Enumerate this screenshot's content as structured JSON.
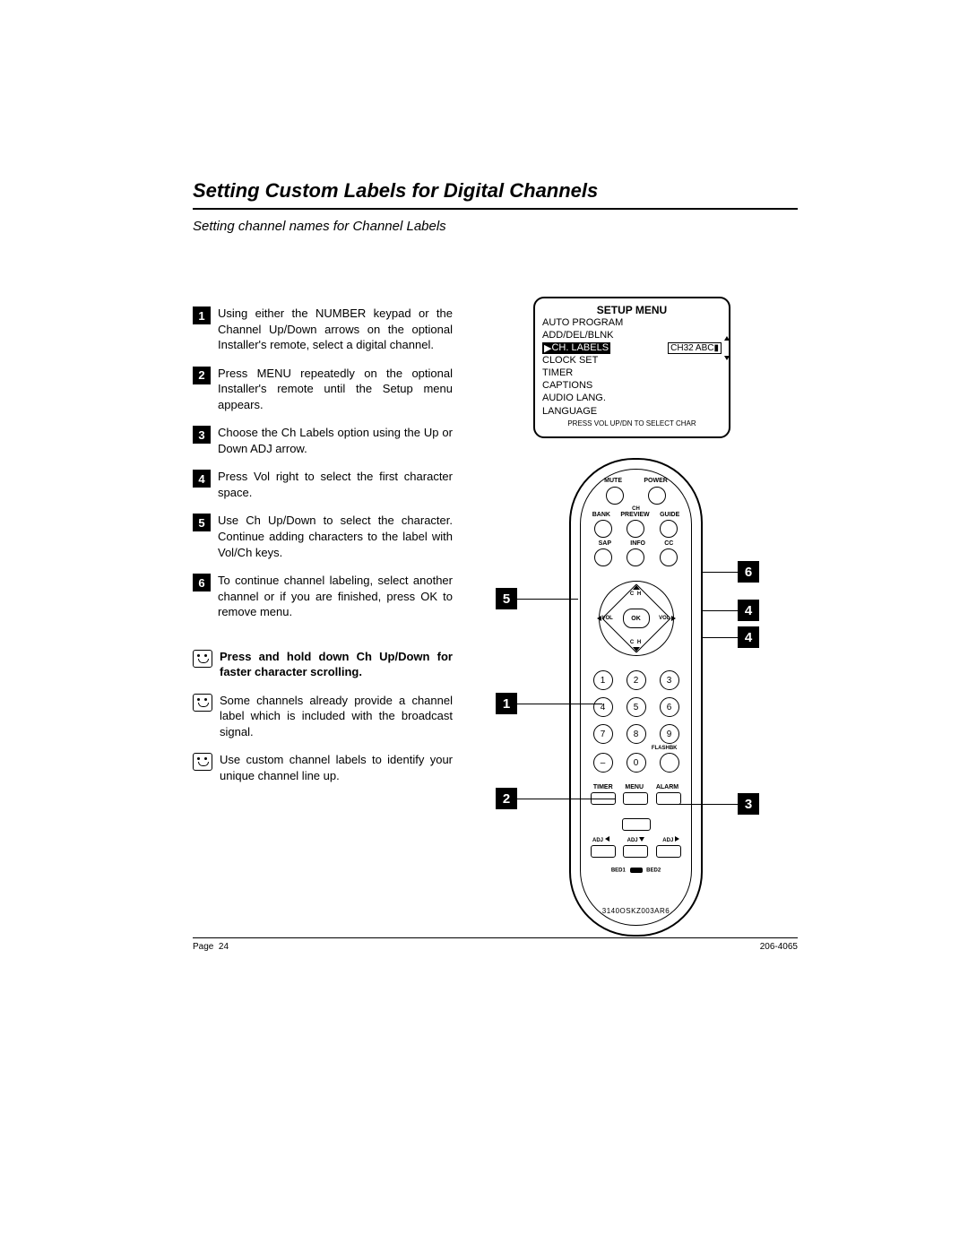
{
  "title": "Setting Custom Labels for Digital Channels",
  "subtitle": "Setting channel names for Channel Labels",
  "steps": [
    {
      "n": "1",
      "text": "Using either the NUMBER keypad or the Channel Up/Down arrows on the optional Installer's remote, select a digital channel."
    },
    {
      "n": "2",
      "text": "Press MENU repeatedly on the optional Installer's remote until the Setup menu appears."
    },
    {
      "n": "3",
      "text": "Choose the Ch  Labels option  using the Up or Down ADJ arrow."
    },
    {
      "n": "4",
      "text": "Press Vol right to select the first character space."
    },
    {
      "n": "5",
      "text": "Use Ch Up/Down to select the char­acter. Continue adding characters to the label with Vol/Ch keys."
    },
    {
      "n": "6",
      "text": "To continue channel labeling, select another channel or if you are fin­ished, press OK to remove menu."
    }
  ],
  "tips": [
    {
      "text": "Press and hold down Ch Up/Down for faster character scrolling.",
      "bold": true
    },
    {
      "text": "Some channels already provide a channel label  which is  included with the broadcast signal.",
      "bold": false
    },
    {
      "text": "Use custom channel labels to iden­tify your unique channel line up.",
      "bold": false
    }
  ],
  "setup": {
    "title": "SETUP MENU",
    "items": [
      "AUTO PROGRAM",
      "ADD/DEL/BLNK"
    ],
    "selected_label": "CH. LABELS",
    "selected_value": "CH32 ABC",
    "items_after": [
      "CLOCK SET",
      "TIMER",
      "CAPTIONS",
      "AUDIO LANG.",
      "LANGUAGE"
    ],
    "hint": "PRESS VOL UP/DN TO SELECT CHAR"
  },
  "remote": {
    "row1_labels": [
      "MUTE",
      "POWER"
    ],
    "row2_labels": [
      "BANK",
      "PREVIEW",
      "GUIDE"
    ],
    "row2_center_top": "CH",
    "row3_labels": [
      "SAP",
      "INFO",
      "CC"
    ],
    "dpad_center": "OK",
    "dpad_top": "C H",
    "dpad_bottom": "C H",
    "dpad_left": "VOL",
    "dpad_right": "VOL",
    "numpad": [
      [
        "1",
        "2",
        "3"
      ],
      [
        "4",
        "5",
        "6"
      ],
      [
        "7",
        "8",
        "9"
      ],
      [
        "–",
        "0",
        ""
      ]
    ],
    "flashbk": "FLASHBK",
    "bottom_row_labels": [
      "TIMER",
      "MENU",
      "ALARM"
    ],
    "adj_up": "ADJ",
    "adj_left": "ADJ",
    "adj_down": "ADJ",
    "adj_right": "ADJ",
    "bed1": "BED1",
    "bed2": "BED2",
    "model": "3140OSKZ003AR6"
  },
  "callouts": {
    "c1": "1",
    "c2": "2",
    "c3": "3",
    "c4a": "4",
    "c4b": "4",
    "c5": "5",
    "c6": "6"
  },
  "footer": {
    "page_label": "Page",
    "page_num": "24",
    "doc_num": "206-4065"
  }
}
